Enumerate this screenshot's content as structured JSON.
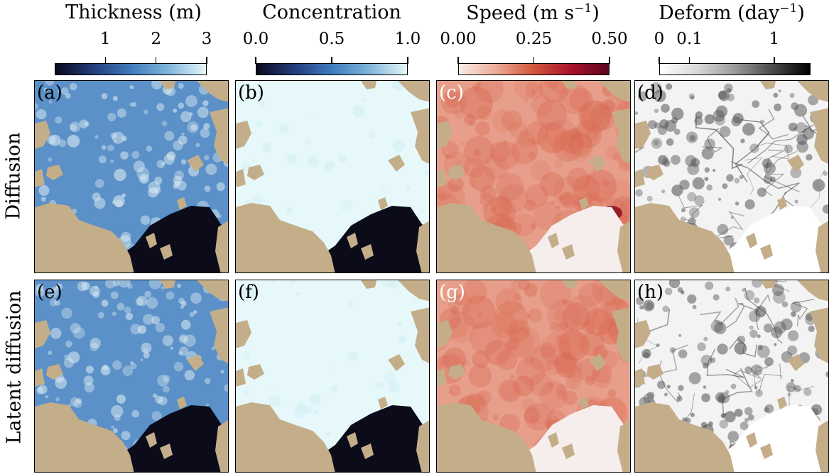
{
  "chart_data": {
    "type": "heatmap",
    "columns": [
      {
        "title_main": "Thickness (m)",
        "title_base": "",
        "title_sup": "",
        "colormap": [
          "#0a0a1e",
          "#233c7a",
          "#3f7bbd",
          "#7fb4da",
          "#e8f7fa"
        ],
        "ticks": [
          {
            "label": "1",
            "pos": 0.333
          },
          {
            "label": "2",
            "pos": 0.667
          },
          {
            "label": "3",
            "pos": 1.0
          }
        ],
        "range": [
          0,
          3
        ]
      },
      {
        "title_main": "Concentration",
        "title_base": "",
        "title_sup": "",
        "colormap": [
          "#0a0a1e",
          "#233c7a",
          "#3f7bbd",
          "#7fb4da",
          "#e8f7fa"
        ],
        "ticks": [
          {
            "label": "0.0",
            "pos": 0.0
          },
          {
            "label": "0.5",
            "pos": 0.5
          },
          {
            "label": "1.0",
            "pos": 1.0
          }
        ],
        "range": [
          0,
          1
        ]
      },
      {
        "title_main": "",
        "title_base": "Speed (m s",
        "title_sup": "−1",
        "title_end": ")",
        "colormap": [
          "#f8ece8",
          "#ecaa95",
          "#d0553c",
          "#a8132c",
          "#5a0620"
        ],
        "ticks": [
          {
            "label": "0.00",
            "pos": 0.0
          },
          {
            "label": "0.25",
            "pos": 0.5
          },
          {
            "label": "0.50",
            "pos": 1.0
          }
        ],
        "range": [
          0,
          0.5
        ]
      },
      {
        "title_main": "",
        "title_base": "Deform (day",
        "title_sup": "−1",
        "title_end": ")",
        "colormap": [
          "#ffffff",
          "#d9d9d9",
          "#9a9a9a",
          "#4a4a4a",
          "#000000"
        ],
        "ticks": [
          {
            "label": "0",
            "pos": 0.0
          },
          {
            "label": "0.1",
            "pos": 0.2
          },
          {
            "label": "1",
            "pos": 0.76
          }
        ],
        "range": [
          0,
          1
        ]
      }
    ],
    "rows": [
      "Diffusion",
      "Latent diffusion"
    ],
    "panel_labels": [
      "(a)",
      "(b)",
      "(c)",
      "(d)",
      "(e)",
      "(f)",
      "(g)",
      "(h)"
    ],
    "land_color": "#c4ae8a",
    "open_water_colors": [
      "#0b0b1a",
      "#0b0b1a",
      "#f6eeec",
      "#ffffff"
    ],
    "field_base_colors": [
      "#5b90c8",
      "#e6f8fa",
      "#e79f8b",
      "#f3f3f3"
    ],
    "field_accent_colors": [
      "#dcecf2",
      "#cfeef4",
      "#d96a54",
      "#555555"
    ]
  }
}
